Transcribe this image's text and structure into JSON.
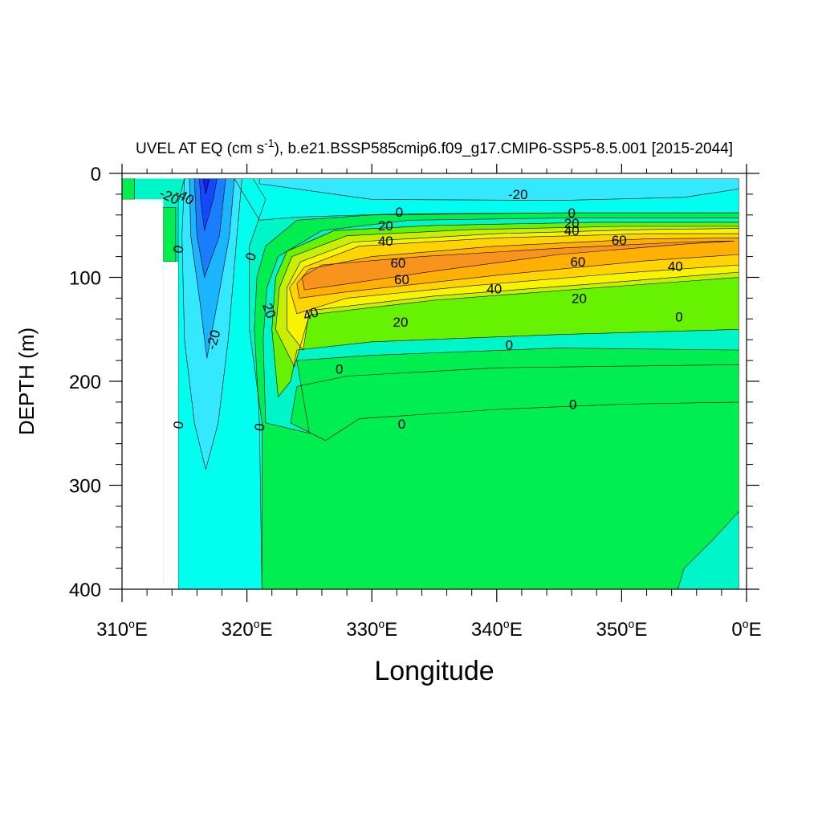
{
  "chart_data": {
    "type": "contour",
    "title_main": "UVEL AT EQ (cm s",
    "title_sup": "-1",
    "title_rest": "), b.e21.BSSP585cmip6.f09_g17.CMIP6-SSP5-8.5.001 [2015-2044]",
    "xlabel": "Longitude",
    "ylabel": "DEPTH (m)",
    "xlim": [
      310,
      360
    ],
    "ylim": [
      0,
      400
    ],
    "y_reversed": true,
    "x_ticks": [
      {
        "value": 310,
        "num": "310",
        "deg": "o",
        "unit": "E"
      },
      {
        "value": 320,
        "num": "320",
        "deg": "o",
        "unit": "E"
      },
      {
        "value": 330,
        "num": "330",
        "deg": "o",
        "unit": "E"
      },
      {
        "value": 340,
        "num": "340",
        "deg": "o",
        "unit": "E"
      },
      {
        "value": 350,
        "num": "350",
        "deg": "o",
        "unit": "E"
      },
      {
        "value": 360,
        "num": "0",
        "deg": "o",
        "unit": "E"
      }
    ],
    "y_ticks": [
      {
        "value": 0,
        "label": "0"
      },
      {
        "value": 100,
        "label": "100"
      },
      {
        "value": 200,
        "label": "200"
      },
      {
        "value": 300,
        "label": "300"
      },
      {
        "value": 400,
        "label": "400"
      }
    ],
    "x_minor_step": 2,
    "y_minor_step": 20,
    "colors": {
      "bg_neutral": "#00f5c8",
      "pos_0_10": "#00ee50",
      "pos_10_20": "#66f200",
      "pos_20_30": "#c8ee00",
      "pos_30_40": "#f8f400",
      "pos_40_50": "#ffd400",
      "pos_50_60": "#ffb000",
      "pos_60_70": "#f8941e",
      "neg_0_10": "#00ffee",
      "neg_10_20": "#33e8ff",
      "neg_20_30": "#1ab4ff",
      "neg_30_40": "#1a7cff",
      "neg_40_50": "#1448ff",
      "neg_50_60": "#1020e8"
    },
    "regions": [
      {
        "color": "pos_0_10",
        "poly": [
          [
            314.5,
            400
          ],
          [
            321.2,
            400
          ],
          [
            321.0,
            240
          ],
          [
            320.6,
            150
          ],
          [
            320.8,
            100
          ],
          [
            321.5,
            70
          ],
          [
            324,
            45
          ],
          [
            330,
            40
          ],
          [
            345,
            38
          ],
          [
            359.4,
            38
          ],
          [
            359.4,
            400
          ]
        ]
      },
      {
        "color": "bg_neutral",
        "poly": [
          [
            325,
            250
          ],
          [
            321.5,
            240
          ],
          [
            321.3,
            160
          ],
          [
            321.6,
            110
          ],
          [
            322.5,
            80
          ],
          [
            326,
            55
          ],
          [
            333,
            45
          ],
          [
            345,
            43
          ],
          [
            359.4,
            43
          ],
          [
            359.4,
            170
          ],
          [
            345,
            168
          ],
          [
            330,
            175
          ],
          [
            324,
            180
          ],
          [
            324.5,
            215
          ]
        ]
      },
      {
        "color": "pos_0_10",
        "poly": [
          [
            326.3,
            257
          ],
          [
            323.5,
            240
          ],
          [
            324,
            205
          ],
          [
            328,
            195
          ],
          [
            340,
            187
          ],
          [
            359.4,
            184
          ],
          [
            359.4,
            220
          ],
          [
            350,
            222
          ],
          [
            340,
            227
          ],
          [
            329,
            236
          ]
        ]
      },
      {
        "color": "bg_neutral",
        "poly": [
          [
            354.5,
            400
          ],
          [
            355,
            380
          ],
          [
            357.5,
            350
          ],
          [
            359.4,
            325
          ],
          [
            359.4,
            400
          ]
        ]
      },
      {
        "color": "pos_10_20",
        "poly": [
          [
            322.5,
            215
          ],
          [
            322.0,
            150
          ],
          [
            322.3,
            100
          ],
          [
            323.2,
            75
          ],
          [
            327,
            55
          ],
          [
            335,
            50
          ],
          [
            348,
            47
          ],
          [
            359.4,
            47
          ],
          [
            359.4,
            150
          ],
          [
            345,
            155
          ],
          [
            330,
            162
          ],
          [
            324,
            170
          ],
          [
            323.5,
            200
          ]
        ]
      },
      {
        "color": "pos_20_30",
        "poly": [
          [
            323.8,
            186
          ],
          [
            322.3,
            150
          ],
          [
            322.6,
            110
          ],
          [
            323.6,
            80
          ],
          [
            328,
            60
          ],
          [
            338,
            54
          ],
          [
            350,
            51
          ],
          [
            359.4,
            51
          ],
          [
            359.4,
            100
          ],
          [
            348,
            110
          ],
          [
            335,
            122
          ],
          [
            325,
            136
          ]
        ]
      },
      {
        "color": "pos_30_40",
        "poly": [
          [
            324.5,
            170
          ],
          [
            323.2,
            150
          ],
          [
            323.2,
            110
          ],
          [
            324.3,
            85
          ],
          [
            328.5,
            66
          ],
          [
            340,
            58
          ],
          [
            352,
            54
          ],
          [
            359.4,
            53
          ],
          [
            359.4,
            95
          ],
          [
            348,
            106
          ],
          [
            335,
            118
          ],
          [
            325,
            132
          ]
        ]
      },
      {
        "color": "pos_40_50",
        "poly": [
          [
            324,
            135
          ],
          [
            323.4,
            110
          ],
          [
            324.6,
            90
          ],
          [
            329,
            70
          ],
          [
            340,
            62
          ],
          [
            352,
            58
          ],
          [
            359.4,
            58
          ],
          [
            359.4,
            88
          ],
          [
            350,
            96
          ],
          [
            338,
            108
          ],
          [
            328,
            120
          ]
        ]
      },
      {
        "color": "pos_50_60",
        "poly": [
          [
            324.2,
            120
          ],
          [
            324,
            106
          ],
          [
            325,
            92
          ],
          [
            330,
            80
          ],
          [
            340,
            70
          ],
          [
            352,
            63
          ],
          [
            359.4,
            62
          ],
          [
            359.4,
            78
          ],
          [
            352,
            84
          ],
          [
            340,
            98
          ],
          [
            328,
            114
          ]
        ]
      },
      {
        "color": "pos_60_70",
        "poly": [
          [
            324.6,
            112
          ],
          [
            324.4,
            100
          ],
          [
            326,
            88
          ],
          [
            334,
            80
          ],
          [
            345,
            72
          ],
          [
            355,
            66
          ],
          [
            359,
            65
          ],
          [
            355,
            68
          ],
          [
            345,
            78
          ],
          [
            335,
            94
          ],
          [
            327,
            108
          ]
        ]
      },
      {
        "color": "neg_0_10",
        "poly": [
          [
            314.5,
            400
          ],
          [
            314.5,
            28
          ],
          [
            315,
            5
          ],
          [
            320.5,
            5
          ],
          [
            321.5,
            25
          ],
          [
            320.2,
            70
          ],
          [
            320.2,
            150
          ],
          [
            321.2,
            240
          ],
          [
            321.2,
            400
          ]
        ]
      },
      {
        "color": "neg_0_10",
        "poly": [
          [
            319,
            5
          ],
          [
            359.4,
            5
          ],
          [
            359.4,
            38
          ],
          [
            345,
            38
          ],
          [
            332,
            39
          ],
          [
            324,
            42
          ],
          [
            321,
            45
          ]
        ]
      },
      {
        "color": "neg_10_20",
        "poly": [
          [
            321,
            5
          ],
          [
            359.4,
            5
          ],
          [
            359.4,
            15
          ],
          [
            355,
            23
          ],
          [
            345,
            26
          ],
          [
            330,
            25
          ],
          [
            321,
            10
          ]
        ]
      },
      {
        "color": "neg_10_20",
        "poly": [
          [
            316.7,
            285
          ],
          [
            315.8,
            240
          ],
          [
            315.0,
            160
          ],
          [
            314.8,
            60
          ],
          [
            315,
            5
          ],
          [
            319.6,
            5
          ],
          [
            319.2,
            60
          ],
          [
            318.5,
            160
          ],
          [
            317.7,
            240
          ]
        ]
      },
      {
        "color": "neg_20_30",
        "poly": [
          [
            316.8,
            178
          ],
          [
            316.2,
            120
          ],
          [
            315.5,
            60
          ],
          [
            315.4,
            5
          ],
          [
            319,
            5
          ],
          [
            318.6,
            60
          ],
          [
            317.7,
            120
          ]
        ]
      },
      {
        "color": "neg_30_40",
        "poly": [
          [
            316.6,
            100
          ],
          [
            316,
            60
          ],
          [
            315.8,
            5
          ],
          [
            318.3,
            5
          ],
          [
            317.8,
            60
          ]
        ]
      },
      {
        "color": "neg_40_50",
        "poly": [
          [
            316.6,
            55
          ],
          [
            316.3,
            25
          ],
          [
            316.2,
            5
          ],
          [
            317.6,
            5
          ],
          [
            317.3,
            25
          ]
        ]
      },
      {
        "color": "neg_50_60",
        "poly": [
          [
            316.7,
            20
          ],
          [
            316.5,
            5
          ],
          [
            317,
            5
          ]
        ]
      },
      {
        "color": "pos_0_10",
        "poly": [
          [
            310,
            5
          ],
          [
            311,
            5
          ],
          [
            311,
            25
          ],
          [
            310,
            25
          ]
        ]
      },
      {
        "color": "pos_0_10",
        "poly": [
          [
            313.3,
            33
          ],
          [
            314.3,
            33
          ],
          [
            314.3,
            85
          ],
          [
            313.3,
            85
          ]
        ]
      }
    ],
    "masked_regions": [
      {
        "poly": [
          [
            310,
            25
          ],
          [
            313.3,
            25
          ],
          [
            313.3,
            400
          ],
          [
            310,
            400
          ]
        ]
      },
      {
        "poly": [
          [
            313.3,
            85
          ],
          [
            314.5,
            85
          ],
          [
            314.5,
            400
          ],
          [
            313.3,
            400
          ]
        ]
      },
      {
        "poly": [
          [
            310,
            0
          ],
          [
            360,
            0
          ],
          [
            360,
            5
          ],
          [
            310,
            5
          ]
        ]
      },
      {
        "poly": [
          [
            359.4,
            0
          ],
          [
            360,
            0
          ],
          [
            360,
            400
          ],
          [
            359.4,
            400
          ]
        ]
      }
    ],
    "contour_labels": [
      {
        "text": "-20",
        "lon": 313.8,
        "depth": 22,
        "angle": 25
      },
      {
        "text": "-40",
        "lon": 315.0,
        "depth": 22,
        "angle": 30
      },
      {
        "text": "-20",
        "lon": 341.7,
        "depth": 20,
        "angle": 0
      },
      {
        "text": "0",
        "lon": 332.2,
        "depth": 37,
        "angle": 0
      },
      {
        "text": "0",
        "lon": 346.0,
        "depth": 38,
        "angle": 0
      },
      {
        "text": "20",
        "lon": 331.1,
        "depth": 50,
        "angle": 0
      },
      {
        "text": "20",
        "lon": 346.0,
        "depth": 48,
        "angle": 0
      },
      {
        "text": "40",
        "lon": 331.1,
        "depth": 65,
        "angle": 0
      },
      {
        "text": "40",
        "lon": 346.0,
        "depth": 55,
        "angle": 0
      },
      {
        "text": "60",
        "lon": 349.8,
        "depth": 64,
        "angle": 0
      },
      {
        "text": "60",
        "lon": 332.1,
        "depth": 86,
        "angle": 0
      },
      {
        "text": "60",
        "lon": 346.5,
        "depth": 85,
        "angle": 0
      },
      {
        "text": "40",
        "lon": 354.3,
        "depth": 89,
        "angle": 0
      },
      {
        "text": "60",
        "lon": 332.4,
        "depth": 102,
        "angle": 0
      },
      {
        "text": "40",
        "lon": 339.8,
        "depth": 111,
        "angle": 0
      },
      {
        "text": "20",
        "lon": 346.6,
        "depth": 120,
        "angle": 0
      },
      {
        "text": "0",
        "lon": 314.5,
        "depth": 73,
        "angle": -80
      },
      {
        "text": "0",
        "lon": 320.3,
        "depth": 80,
        "angle": -70
      },
      {
        "text": "20",
        "lon": 321.8,
        "depth": 132,
        "angle": 70
      },
      {
        "text": "40",
        "lon": 325.1,
        "depth": 135,
        "angle": -20
      },
      {
        "text": "20",
        "lon": 332.3,
        "depth": 143,
        "angle": 0
      },
      {
        "text": "0",
        "lon": 354.6,
        "depth": 138,
        "angle": 0
      },
      {
        "text": "0",
        "lon": 341.0,
        "depth": 165,
        "angle": 0
      },
      {
        "text": "-20",
        "lon": 317.3,
        "depth": 160,
        "angle": -75
      },
      {
        "text": "0",
        "lon": 327.4,
        "depth": 188,
        "angle": 0
      },
      {
        "text": "0",
        "lon": 346.1,
        "depth": 222,
        "angle": 0
      },
      {
        "text": "0",
        "lon": 332.4,
        "depth": 241,
        "angle": 0
      },
      {
        "text": "0",
        "lon": 314.5,
        "depth": 242,
        "angle": -80
      },
      {
        "text": "0",
        "lon": 321.0,
        "depth": 244,
        "angle": -80
      }
    ]
  }
}
